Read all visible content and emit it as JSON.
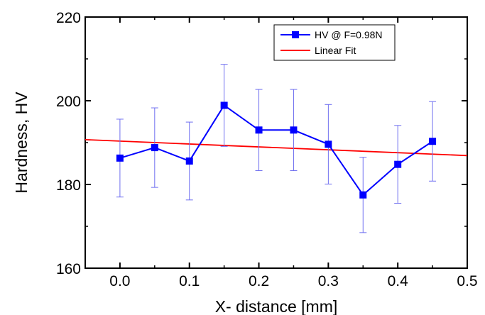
{
  "chart_data": {
    "type": "line",
    "xlabel": "X- distance [mm]",
    "ylabel": "Hardness, HV",
    "xlim": [
      -0.05,
      0.5
    ],
    "ylim": [
      160,
      220
    ],
    "x_ticks": [
      0.0,
      0.1,
      0.2,
      0.3,
      0.4,
      0.5
    ],
    "x_tick_labels": [
      "0.0",
      "0.1",
      "0.2",
      "0.3",
      "0.4",
      "0.5"
    ],
    "y_ticks": [
      160,
      180,
      200,
      220
    ],
    "y_tick_labels": [
      "160",
      "180",
      "200",
      "220"
    ],
    "grid": false,
    "legend_position": "top-right",
    "series": [
      {
        "name": "HV @ F=0.98N",
        "kind": "line-marker",
        "marker": "square",
        "color": "#0000ff",
        "x": [
          0.0,
          0.05,
          0.1,
          0.15,
          0.2,
          0.25,
          0.3,
          0.35,
          0.4,
          0.45
        ],
        "y": [
          186.3,
          188.8,
          185.6,
          198.9,
          193.0,
          193.0,
          189.6,
          177.5,
          184.8,
          190.3
        ],
        "error": [
          9.3,
          9.5,
          9.3,
          9.8,
          9.7,
          9.7,
          9.5,
          9.0,
          9.3,
          9.5
        ]
      },
      {
        "name": "Linear Fit",
        "kind": "line",
        "color": "#ff0000",
        "x": [
          -0.05,
          0.5
        ],
        "y": [
          190.7,
          186.9
        ]
      }
    ]
  }
}
